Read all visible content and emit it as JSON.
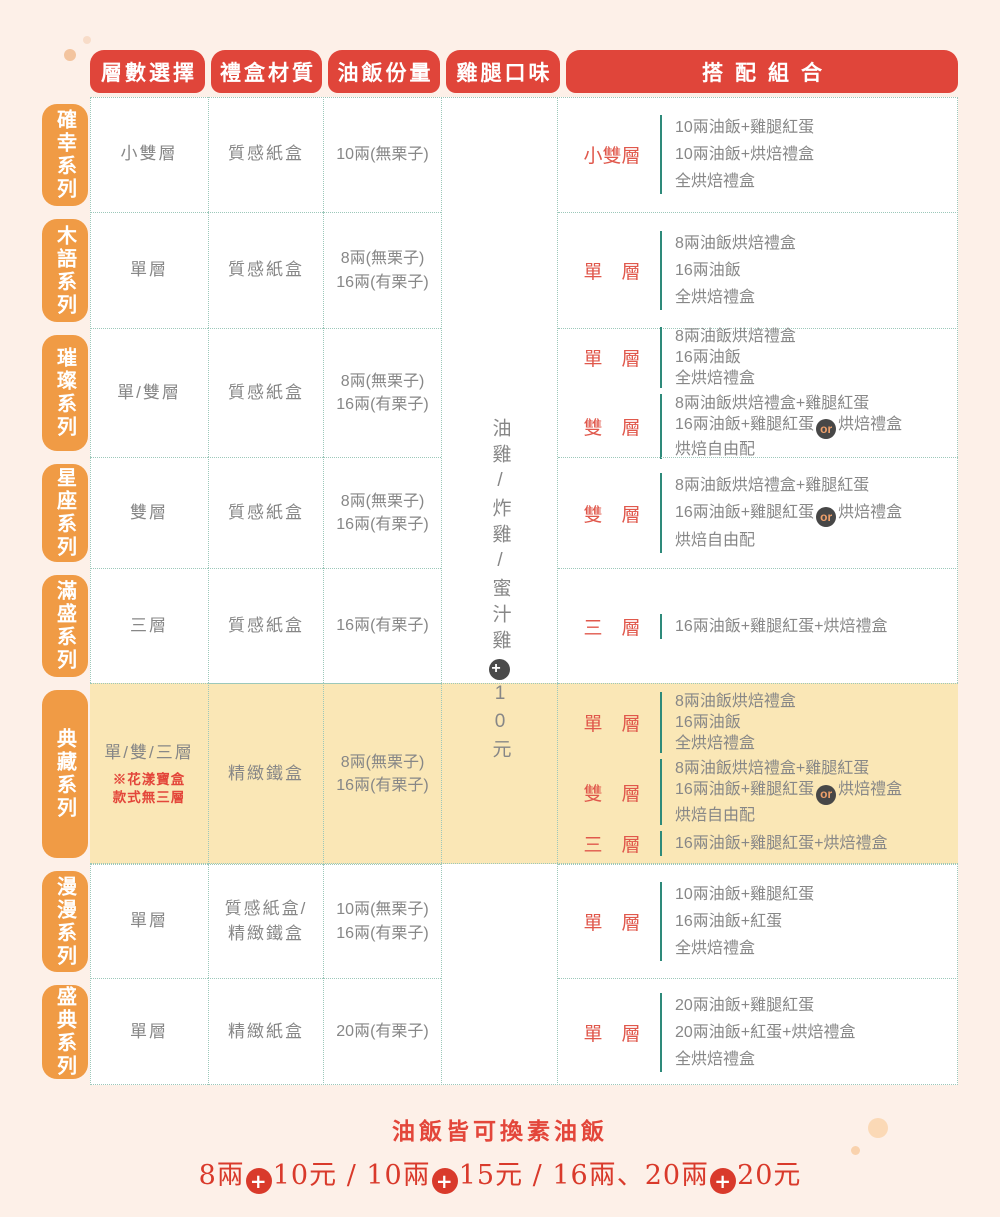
{
  "headers": [
    "層數選擇",
    "禮盒材質",
    "油飯份量",
    "雞腿口味",
    "搭配組合"
  ],
  "badges": {
    "or": "or",
    "plus": "+"
  },
  "flavor_column": {
    "text": "油雞/炸雞/蜜汁雞{plus}10元"
  },
  "rows": [
    {
      "series": "確幸系列",
      "layers": "小雙層",
      "material": [
        "質感紙盒"
      ],
      "portions": [
        "10兩(無栗子)"
      ],
      "highlight": false,
      "combos": [
        {
          "label": "小雙層",
          "items": [
            "10兩油飯+雞腿紅蛋",
            "10兩油飯+烘焙禮盒",
            "全烘焙禮盒"
          ]
        }
      ]
    },
    {
      "series": "木語系列",
      "layers": "單層",
      "material": [
        "質感紙盒"
      ],
      "portions": [
        "8兩(無栗子)",
        "16兩(有栗子)"
      ],
      "highlight": false,
      "combos": [
        {
          "label": "單　層",
          "items": [
            "8兩油飯烘焙禮盒",
            "16兩油飯",
            "全烘焙禮盒"
          ]
        }
      ]
    },
    {
      "series": "璀璨系列",
      "layers": "單/雙層",
      "material": [
        "質感紙盒"
      ],
      "portions": [
        "8兩(無栗子)",
        "16兩(有栗子)"
      ],
      "highlight": false,
      "combos": [
        {
          "label": "單　層",
          "items": [
            "8兩油飯烘焙禮盒",
            "16兩油飯",
            "全烘焙禮盒"
          ]
        },
        {
          "label": "雙　層",
          "items": [
            "8兩油飯烘焙禮盒+雞腿紅蛋",
            "16兩油飯+雞腿紅蛋{or}烘焙禮盒",
            "烘焙自由配"
          ]
        }
      ]
    },
    {
      "series": "星座系列",
      "layers": "雙層",
      "material": [
        "質感紙盒"
      ],
      "portions": [
        "8兩(無栗子)",
        "16兩(有栗子)"
      ],
      "highlight": false,
      "combos": [
        {
          "label": "雙　層",
          "items": [
            "8兩油飯烘焙禮盒+雞腿紅蛋",
            "16兩油飯+雞腿紅蛋{or}烘焙禮盒",
            "烘焙自由配"
          ]
        }
      ]
    },
    {
      "series": "滿盛系列",
      "layers": "三層",
      "material": [
        "質感紙盒"
      ],
      "portions": [
        "16兩(有栗子)"
      ],
      "highlight": false,
      "combos": [
        {
          "label": "三　層",
          "items": [
            "16兩油飯+雞腿紅蛋+烘焙禮盒"
          ]
        }
      ]
    },
    {
      "series": "典藏系列",
      "layers": "單/雙/三層",
      "layers_note": [
        "※花漾寶盒",
        "款式無三層"
      ],
      "material": [
        "精緻鐵盒"
      ],
      "portions": [
        "8兩(無栗子)",
        "16兩(有栗子)"
      ],
      "highlight": true,
      "combos": [
        {
          "label": "單　層",
          "items": [
            "8兩油飯烘焙禮盒",
            "16兩油飯",
            "全烘焙禮盒"
          ]
        },
        {
          "label": "雙　層",
          "items": [
            "8兩油飯烘焙禮盒+雞腿紅蛋",
            "16兩油飯+雞腿紅蛋{or}烘焙禮盒",
            "烘焙自由配"
          ]
        },
        {
          "label": "三　層",
          "items": [
            "16兩油飯+雞腿紅蛋+烘焙禮盒"
          ]
        }
      ]
    },
    {
      "series": "漫漫系列",
      "layers": "單層",
      "material": [
        "質感紙盒/",
        "精緻鐵盒"
      ],
      "portions": [
        "10兩(無栗子)",
        "16兩(有栗子)"
      ],
      "highlight": false,
      "combos": [
        {
          "label": "單　層",
          "items": [
            "10兩油飯+雞腿紅蛋",
            "16兩油飯+紅蛋",
            "全烘焙禮盒"
          ]
        }
      ]
    },
    {
      "series": "盛典系列",
      "layers": "單層",
      "material": [
        "精緻紙盒"
      ],
      "portions": [
        "20兩(有栗子)"
      ],
      "highlight": false,
      "combos": [
        {
          "label": "單　層",
          "items": [
            "20兩油飯+雞腿紅蛋",
            "20兩油飯+紅蛋+烘焙禮盒",
            "全烘焙禮盒"
          ]
        }
      ]
    }
  ],
  "footnote": {
    "line1": "油飯皆可換素油飯",
    "line2": "8兩{plus}10元 / 10兩{plus}15元 / 16兩、20兩{plus}20元"
  },
  "colors": {
    "page_bg": "#fdf0e8",
    "header_red": "#e0453a",
    "tab_orange": "#f09b45",
    "highlight_yellow": "#fae7b6",
    "accent_teal": "#2e8a7a",
    "dotted_border_teal": "#9cc8ba",
    "body_text_gray": "#878787",
    "combo_label_red": "#e0584c",
    "note_red": "#e3463a",
    "plus_badge_red": "#d93a2b",
    "or_badge_bg": "#474747",
    "or_badge_text": "#efa06b"
  }
}
